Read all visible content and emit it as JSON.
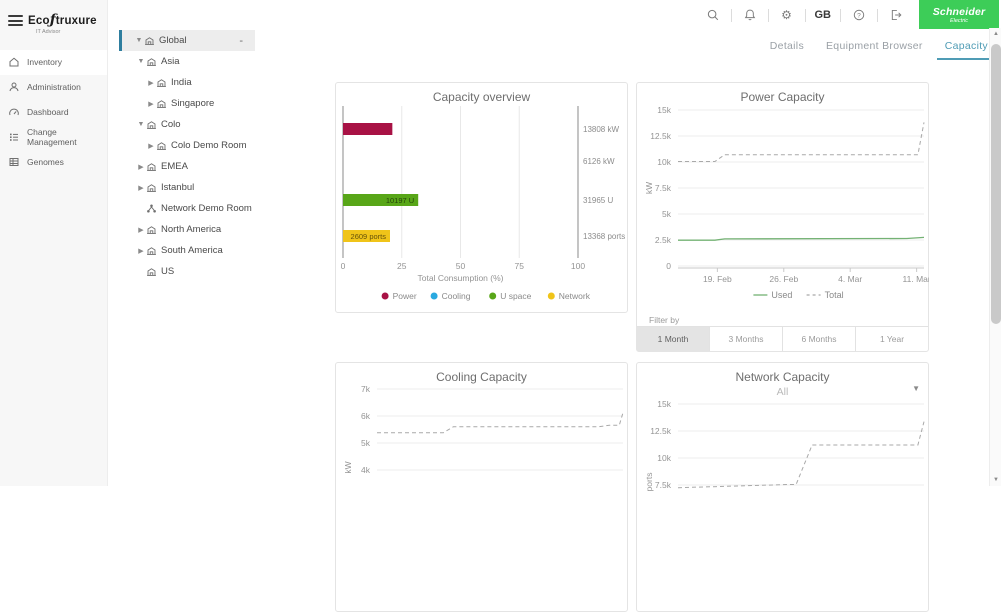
{
  "app": {
    "logo": {
      "brand_prefix": "Eco",
      "brand_script": "ƒ",
      "brand_suffix": "truxure",
      "sub": "IT Advisor"
    },
    "topbar": {
      "icons": [
        "search",
        "notifications",
        "settings",
        "help",
        "logout"
      ],
      "language": "GB"
    },
    "brand_logo": {
      "line1": "Schneider",
      "line2": "Electric",
      "color": "#3dcd58"
    }
  },
  "sidebar": {
    "items": [
      {
        "label": "Inventory",
        "icon": "inventory-icon",
        "active": true
      },
      {
        "label": "Administration",
        "icon": "administration-icon",
        "active": false
      },
      {
        "label": "Dashboard",
        "icon": "dashboard-icon",
        "active": false
      },
      {
        "label": "Change Management",
        "icon": "change-management-icon",
        "active": false
      },
      {
        "label": "Genomes",
        "icon": "genomes-icon",
        "active": false
      }
    ]
  },
  "tree": {
    "items": [
      {
        "label": "Global",
        "level": 0,
        "chevron": "down",
        "icon": "location",
        "selected": true,
        "action": "-"
      },
      {
        "label": "Asia",
        "level": 1,
        "chevron": "down",
        "icon": "location"
      },
      {
        "label": "India",
        "level": 2,
        "chevron": "right",
        "icon": "location"
      },
      {
        "label": "Singapore",
        "level": 2,
        "chevron": "right",
        "icon": "location"
      },
      {
        "label": "Colo",
        "level": 1,
        "chevron": "down",
        "icon": "location"
      },
      {
        "label": "Colo Demo Room",
        "level": 2,
        "chevron": "right",
        "icon": "location"
      },
      {
        "label": "EMEA",
        "level": 1,
        "chevron": "right",
        "icon": "location"
      },
      {
        "label": "Istanbul",
        "level": 1,
        "chevron": "right",
        "icon": "location"
      },
      {
        "label": "Network Demo Room",
        "level": 1,
        "chevron": "none",
        "icon": "network"
      },
      {
        "label": "North America",
        "level": 1,
        "chevron": "right",
        "icon": "location"
      },
      {
        "label": "South America",
        "level": 1,
        "chevron": "right",
        "icon": "location"
      },
      {
        "label": "US",
        "level": 1,
        "chevron": "none",
        "icon": "location"
      }
    ]
  },
  "tabs": {
    "items": [
      {
        "label": "Details",
        "active": false
      },
      {
        "label": "Equipment Browser",
        "active": false
      },
      {
        "label": "Capacity",
        "active": true
      }
    ]
  },
  "filter": {
    "label": "Filter by",
    "options": [
      {
        "label": "1 Month",
        "active": true
      },
      {
        "label": "3 Months",
        "active": false
      },
      {
        "label": "6 Months",
        "active": false
      },
      {
        "label": "1 Year",
        "active": false
      }
    ]
  },
  "chart_data": [
    {
      "id": "capacity_overview",
      "type": "bar",
      "orientation": "horizontal",
      "title": "Capacity overview",
      "xlabel": "Total Consumption (%)",
      "xlim": [
        0,
        100
      ],
      "xticks": [
        0,
        25,
        50,
        75,
        100
      ],
      "categories": [
        "Power",
        "Cooling",
        "U space",
        "Network"
      ],
      "series": [
        {
          "name": "Power",
          "color": "#a81245",
          "consumption_pct": 21,
          "bar_label": "",
          "total_label": "13808 kW"
        },
        {
          "name": "Cooling",
          "color": "#29a9e0",
          "consumption_pct": 0,
          "bar_label": "",
          "total_label": "6126 kW"
        },
        {
          "name": "U space",
          "color": "#58a618",
          "consumption_pct": 32,
          "bar_label": "10197 U",
          "total_label": "31965 U"
        },
        {
          "name": "Network",
          "color": "#f0c419",
          "consumption_pct": 20,
          "bar_label": "2609 ports",
          "total_label": "13368 ports"
        }
      ],
      "legend": [
        "Power",
        "Cooling",
        "U space",
        "Network"
      ]
    },
    {
      "id": "power_capacity",
      "type": "line",
      "title": "Power Capacity",
      "ylabel": "kW",
      "ylim": [
        0,
        15000
      ],
      "yticks": [
        {
          "v": 0,
          "label": "0"
        },
        {
          "v": 2500,
          "label": "2.5k"
        },
        {
          "v": 5000,
          "label": "5k"
        },
        {
          "v": 7500,
          "label": "7.5k"
        },
        {
          "v": 10000,
          "label": "10k"
        },
        {
          "v": 12500,
          "label": "12.5k"
        },
        {
          "v": 15000,
          "label": "15k"
        }
      ],
      "xticks": [
        {
          "pos": 0.16,
          "label": "19. Feb"
        },
        {
          "pos": 0.43,
          "label": "26. Feb"
        },
        {
          "pos": 0.7,
          "label": "4. Mar"
        },
        {
          "pos": 0.97,
          "label": "11. Mar"
        }
      ],
      "series": [
        {
          "name": "Used",
          "style": "solid",
          "color": "#74b274",
          "points": [
            [
              0,
              2480
            ],
            [
              0.15,
              2480
            ],
            [
              0.19,
              2610
            ],
            [
              0.93,
              2640
            ],
            [
              1,
              2750
            ]
          ]
        },
        {
          "name": "Total",
          "style": "dashed",
          "color": "#a9a9a9",
          "points": [
            [
              0,
              10050
            ],
            [
              0.15,
              10050
            ],
            [
              0.19,
              10700
            ],
            [
              0.975,
              10700
            ],
            [
              1,
              13808
            ]
          ]
        }
      ],
      "legend": [
        {
          "label": "Used",
          "style": "solid"
        },
        {
          "label": "Total",
          "style": "dashed"
        }
      ]
    },
    {
      "id": "cooling_capacity",
      "type": "line",
      "title": "Cooling Capacity",
      "ylabel": "kW",
      "ylim": [
        4000,
        7000
      ],
      "yticks": [
        {
          "v": 4000,
          "label": "4k"
        },
        {
          "v": 5000,
          "label": "5k"
        },
        {
          "v": 6000,
          "label": "6k"
        },
        {
          "v": 7000,
          "label": "7k"
        }
      ],
      "xticks": [],
      "series": [
        {
          "name": "Total",
          "style": "dashed",
          "color": "#a9a9a9",
          "points": [
            [
              0,
              5380
            ],
            [
              0.27,
              5380
            ],
            [
              0.31,
              5600
            ],
            [
              0.9,
              5600
            ],
            [
              0.945,
              5660
            ],
            [
              0.985,
              5660
            ],
            [
              1,
              6126
            ]
          ]
        }
      ]
    },
    {
      "id": "network_capacity",
      "type": "line",
      "title": "Network Capacity",
      "subtitle": "All",
      "ylabel": "ports",
      "ylim": [
        7500,
        15000
      ],
      "yticks": [
        {
          "v": 7500,
          "label": "7.5k"
        },
        {
          "v": 10000,
          "label": "10k"
        },
        {
          "v": 12500,
          "label": "12.5k"
        },
        {
          "v": 15000,
          "label": "15k"
        }
      ],
      "xticks": [],
      "series": [
        {
          "name": "Total",
          "style": "dashed",
          "color": "#a9a9a9",
          "points": [
            [
              0,
              7250
            ],
            [
              0.45,
              7550
            ],
            [
              0.48,
              7550
            ],
            [
              0.545,
              11200
            ],
            [
              0.965,
              11200
            ],
            [
              0.975,
              11200
            ],
            [
              1,
              13368
            ]
          ]
        }
      ]
    }
  ]
}
